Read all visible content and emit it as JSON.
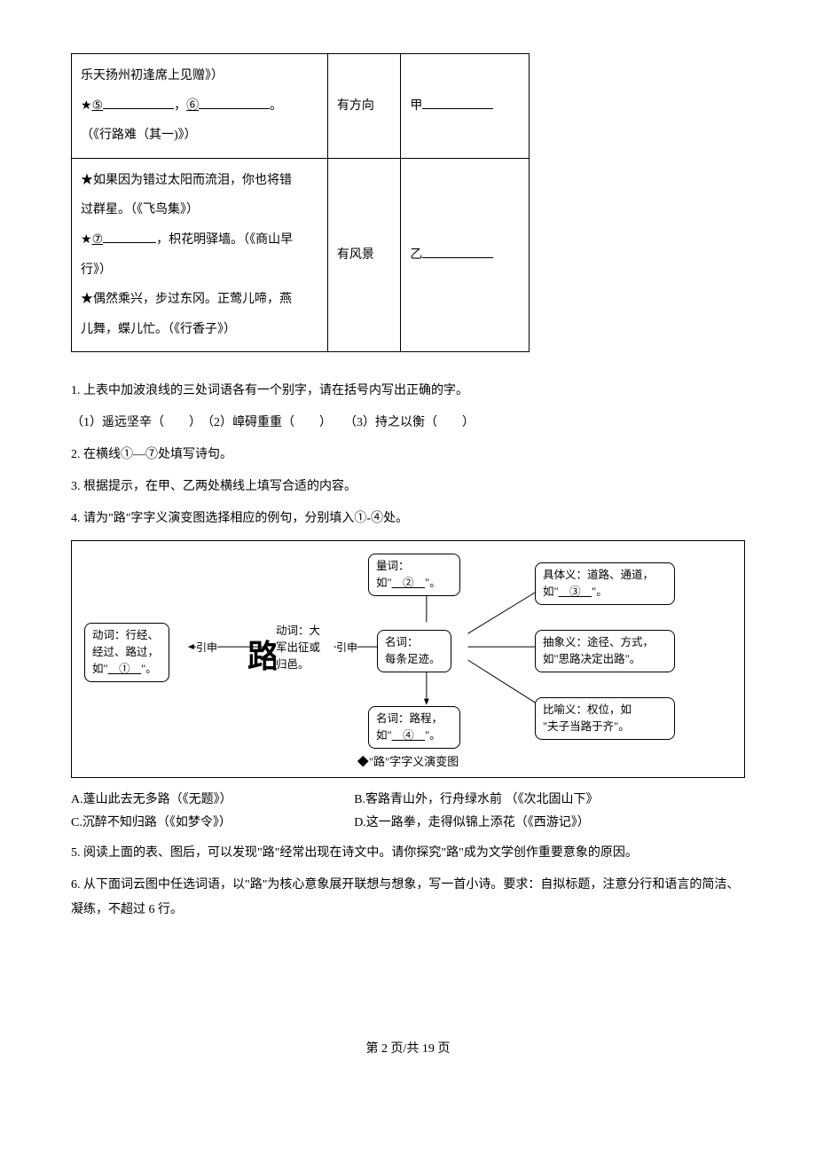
{
  "table": {
    "row1": {
      "cell1": {
        "line1": "乐天扬州初逢席上见赠》）",
        "star": "★",
        "blank5": "⑤",
        "comma": "，",
        "blank6": "⑥",
        "period": "。",
        "source": "（《行路难（其一)》）"
      },
      "cell2": "有方向",
      "cell3_prefix": "甲"
    },
    "row2": {
      "cell1": {
        "line1a": "★如果因为错过太阳而流泪，你也将错",
        "line1b": "过群星。（《飞鸟集》）",
        "star": "★",
        "blank7": "⑦",
        "after7": "，枳花明驿墙。（《商山早",
        "after7b": "行》）",
        "line3a": "★偶然乘兴，步过东冈。正莺儿啼，燕",
        "line3b": "儿舞，蝶儿忙。（《行香子》）"
      },
      "cell2": "有风景",
      "cell3_prefix": "乙"
    }
  },
  "q1": {
    "text": "1. 上表中加波浪线的三处词语各有一个别字，请在括号内写出正确的字。",
    "sub": "（1）遥远坚辛（　　）　（2）嶂碍重重（　　）　　（3）持之以衡（　　）"
  },
  "q2": "2. 在横线①—⑦处填写诗句。",
  "q3": "3. 根据提示，在甲、乙两处横线上填写合适的内容。",
  "q4": "4. 请为\"路\"字字义演变图选择相应的例句，分别填入①-④处。",
  "diagram": {
    "n_left": "动词：行经、\n经过、路过，\n如\"　①　\"。",
    "n_center": "动词：大\n军出征或\n归邑。",
    "n_right_mid": "名词：\n每条足迹。",
    "n_top": "量词：\n如\"　②　\"。",
    "n_bottom": "名词：路程，\n如\"　④　\"。",
    "n_r1": "具体义：道路、通道，\n如\"　③　\"。",
    "n_r2": "抽象义：途径、方式，\n如\"思路决定出路\"。",
    "n_r3": "比喻义：权位，如\n\"夫子当路于齐\"。",
    "lbl_yinshen": "引申",
    "caption": "◆\"路\"字字义演变图",
    "glyph": "路"
  },
  "options": {
    "a": "A.蓬山此去无多路（《无题》）",
    "b": "B.客路青山外，行舟绿水前 （《次北固山下》",
    "c": "C.沉醉不知归路（《如梦令》）",
    "d": "D.这一路拳，走得似锦上添花（《西游记》）"
  },
  "q5": "5. 阅读上面的表、图后，可以发现\"路\"经常出现在诗文中。请你探究\"路\"成为文学创作重要意象的原因。",
  "q6": "6. 从下面词云图中任选词语，以\"路\"为核心意象展开联想与想象，写一首小诗。要求：自拟标题，注意分行和语言的简洁、凝练，不超过 6 行。",
  "footer": "第 2 页/共 19 页"
}
